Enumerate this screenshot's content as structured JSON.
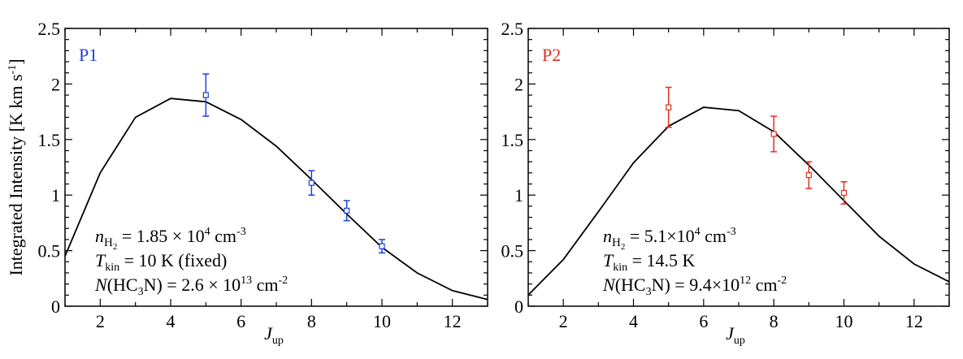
{
  "chart_data": [
    {
      "type": "line",
      "panel_label": "P1",
      "panel_color": "#1f3fd6",
      "xlabel_main": "J",
      "xlabel_sub": "up",
      "ylabel": "Integrated Intensity [K km s",
      "ylabel_sup": "-1",
      "ylabel_end": "]",
      "xlim": [
        1,
        13
      ],
      "ylim": [
        0,
        2.5
      ],
      "x_ticks": [
        2,
        4,
        6,
        8,
        10,
        12
      ],
      "x_tick_labels": [
        "2",
        "4",
        "6",
        "8",
        "10",
        "12"
      ],
      "y_ticks": [
        0,
        0.5,
        1,
        1.5,
        2,
        2.5
      ],
      "y_tick_labels": [
        "0",
        "0.5",
        "1",
        "1.5",
        "2",
        "2.5"
      ],
      "series": [
        {
          "kind": "model_line",
          "color": "#000000",
          "x": [
            1,
            2,
            3,
            4,
            5,
            6,
            7,
            8,
            9,
            10,
            11,
            12,
            13
          ],
          "y": [
            0.45,
            1.2,
            1.7,
            1.87,
            1.84,
            1.68,
            1.44,
            1.14,
            0.83,
            0.53,
            0.3,
            0.14,
            0.06
          ]
        },
        {
          "kind": "observed_points",
          "color": "#1f3fd6",
          "x": [
            5,
            8,
            9,
            10
          ],
          "y": [
            1.9,
            1.11,
            0.86,
            0.54
          ],
          "yerr": [
            0.19,
            0.11,
            0.09,
            0.06
          ]
        }
      ],
      "params": {
        "line1": {
          "pre": "n",
          "sub": "H",
          "subsub": "2",
          "post": " = 1.85 × 10",
          "sup": "4",
          "tail": " cm",
          "tailsup": "-3"
        },
        "line2": {
          "pre": "T",
          "sub": "kin",
          "post": " = 10 K (fixed)"
        },
        "line3": {
          "pre": "N",
          "mid": "(HC",
          "sub": "3",
          "post": "N) = 2.6 × 10",
          "sup": "13",
          "tail": " cm",
          "tailsup": "-2"
        }
      }
    },
    {
      "type": "line",
      "panel_label": "P2",
      "panel_color": "#e0301c",
      "xlabel_main": "J",
      "xlabel_sub": "up",
      "xlim": [
        1,
        13
      ],
      "ylim": [
        0,
        2.5
      ],
      "x_ticks": [
        2,
        4,
        6,
        8,
        10,
        12
      ],
      "x_tick_labels": [
        "2",
        "4",
        "6",
        "8",
        "10",
        "12"
      ],
      "y_ticks": [
        0,
        0.5,
        1,
        1.5,
        2,
        2.5
      ],
      "y_tick_labels": [
        "0",
        "0.5",
        "1",
        "1.5",
        "2",
        "2.5"
      ],
      "series": [
        {
          "kind": "model_line",
          "color": "#000000",
          "x": [
            1,
            2,
            3,
            4,
            5,
            6,
            7,
            8,
            9,
            10,
            11,
            12,
            13
          ],
          "y": [
            0.1,
            0.42,
            0.85,
            1.29,
            1.62,
            1.79,
            1.76,
            1.57,
            1.27,
            0.95,
            0.63,
            0.38,
            0.22
          ]
        },
        {
          "kind": "observed_points",
          "color": "#e0301c",
          "x": [
            5,
            8,
            9,
            10
          ],
          "y": [
            1.79,
            1.55,
            1.18,
            1.02
          ],
          "yerr": [
            0.18,
            0.16,
            0.12,
            0.1
          ]
        }
      ],
      "params": {
        "line1": {
          "pre": "n",
          "sub": "H",
          "subsub": "2",
          "post": " = 5.1×10",
          "sup": "4",
          "tail": " cm",
          "tailsup": "-3"
        },
        "line2": {
          "pre": "T",
          "sub": "kin",
          "post": " = 14.5 K"
        },
        "line3": {
          "pre": "N",
          "mid": "(HC",
          "sub": "3",
          "post": "N) = 9.4×10",
          "sup": "12",
          "tail": " cm",
          "tailsup": "-2"
        }
      }
    }
  ]
}
